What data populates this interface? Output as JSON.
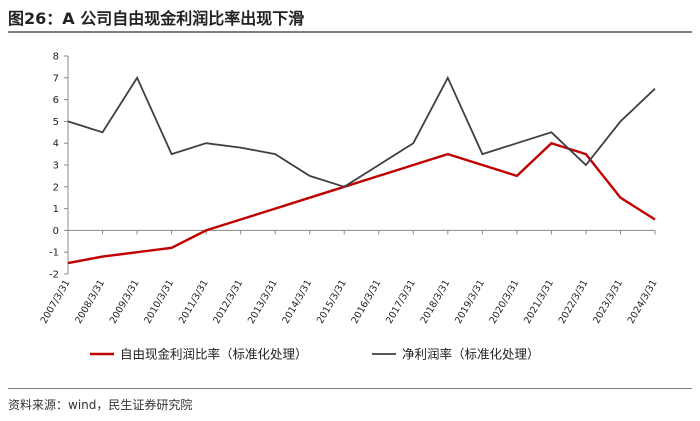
{
  "header": {
    "title": "图26：A 公司自由现金利润比率出现下滑"
  },
  "footer": {
    "source": "资料来源：wind，民生证券研究院"
  },
  "chart_data": {
    "type": "line",
    "title": "图26：A 公司自由现金利润比率出现下滑",
    "categories": [
      "2007/3/31",
      "2008/3/31",
      "2009/3/31",
      "2010/3/31",
      "2011/3/31",
      "2012/3/31",
      "2013/3/31",
      "2014/3/31",
      "2015/3/31",
      "2016/3/31",
      "2017/3/31",
      "2018/3/31",
      "2019/3/31",
      "2020/3/31",
      "2021/3/31",
      "2022/3/31",
      "2023/3/31",
      "2024/3/31"
    ],
    "ylim": [
      -2,
      8
    ],
    "yticks": [
      -2,
      -1,
      0,
      1,
      2,
      3,
      4,
      5,
      6,
      7,
      8
    ],
    "grid": false,
    "legend_position": "bottom",
    "series": [
      {
        "name": "自由现金利润比率（标准化处理）",
        "color": "#c00000",
        "values": [
          -1.5,
          -1.2,
          -1.0,
          -0.8,
          0.0,
          0.5,
          1.0,
          1.5,
          2.0,
          2.5,
          3.0,
          3.5,
          3.0,
          2.5,
          4.0,
          3.5,
          1.5,
          0.5
        ]
      },
      {
        "name": "净利润率（标准化处理）",
        "color": "#404040",
        "values": [
          5.0,
          4.5,
          7.0,
          3.5,
          4.0,
          3.8,
          3.5,
          2.5,
          2.0,
          3.0,
          4.0,
          7.0,
          3.5,
          4.0,
          4.5,
          3.0,
          5.0,
          6.5
        ]
      }
    ]
  }
}
